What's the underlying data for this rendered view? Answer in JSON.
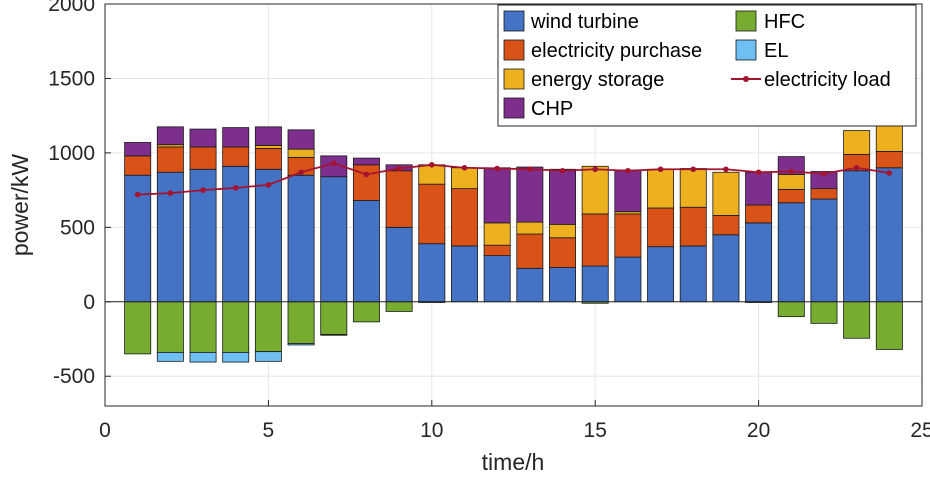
{
  "chart_data": {
    "type": "bar",
    "stacked": true,
    "title": "",
    "xlabel": "time/h",
    "ylabel": "power/kW",
    "xlim": [
      0,
      25
    ],
    "ylim": [
      -700,
      2000
    ],
    "xticks": [
      0,
      5,
      10,
      15,
      20,
      25
    ],
    "yticks": [
      -500,
      0,
      500,
      1000,
      1500,
      2000
    ],
    "grid": true,
    "legend_position": "top-right",
    "x": [
      1,
      2,
      3,
      4,
      5,
      6,
      7,
      8,
      9,
      10,
      11,
      12,
      13,
      14,
      15,
      16,
      17,
      18,
      19,
      20,
      21,
      22,
      23,
      24
    ],
    "series": [
      {
        "name": "wind turbine",
        "color": "#4472C4",
        "kind": "bar",
        "values": [
          850,
          870,
          890,
          910,
          890,
          850,
          840,
          680,
          500,
          390,
          375,
          310,
          225,
          230,
          240,
          300,
          370,
          375,
          450,
          530,
          665,
          690,
          880,
          900
        ]
      },
      {
        "name": "electricity purchase",
        "color": "#D95319",
        "kind": "bar",
        "values": [
          130,
          170,
          150,
          130,
          140,
          120,
          0,
          240,
          380,
          400,
          385,
          70,
          230,
          200,
          350,
          290,
          260,
          260,
          130,
          120,
          90,
          70,
          110,
          110
        ]
      },
      {
        "name": "energy storage",
        "color": "#EDB120",
        "kind": "bar",
        "values": [
          0,
          15,
          0,
          0,
          20,
          55,
          0,
          0,
          0,
          130,
          140,
          150,
          80,
          90,
          320,
          15,
          260,
          260,
          290,
          0,
          100,
          0,
          160,
          175
        ]
      },
      {
        "name": "CHP",
        "color": "#7E2F8E",
        "kind": "bar",
        "values": [
          90,
          120,
          120,
          130,
          125,
          130,
          140,
          45,
          40,
          0,
          0,
          370,
          370,
          370,
          0,
          280,
          0,
          0,
          0,
          220,
          120,
          115,
          0,
          0
        ]
      },
      {
        "name": "HFC",
        "color": "#77AC30",
        "kind": "bar",
        "values": [
          -350,
          -340,
          -340,
          -340,
          -335,
          -280,
          -220,
          -135,
          -65,
          -5,
          0,
          0,
          0,
          0,
          -10,
          0,
          0,
          0,
          0,
          -5,
          -100,
          -145,
          -245,
          -320
        ]
      },
      {
        "name": "EL",
        "color": "#6FBFF2",
        "kind": "bar",
        "values": [
          0,
          -60,
          -65,
          -65,
          -65,
          -10,
          -5,
          0,
          0,
          0,
          0,
          0,
          0,
          0,
          0,
          0,
          0,
          0,
          0,
          0,
          0,
          0,
          0,
          0
        ]
      },
      {
        "name": "electricity load",
        "color": "#A2142F",
        "kind": "line",
        "values": [
          720,
          730,
          750,
          765,
          785,
          870,
          930,
          855,
          895,
          920,
          900,
          895,
          890,
          880,
          890,
          880,
          890,
          890,
          890,
          870,
          875,
          860,
          900,
          865
        ]
      }
    ]
  }
}
